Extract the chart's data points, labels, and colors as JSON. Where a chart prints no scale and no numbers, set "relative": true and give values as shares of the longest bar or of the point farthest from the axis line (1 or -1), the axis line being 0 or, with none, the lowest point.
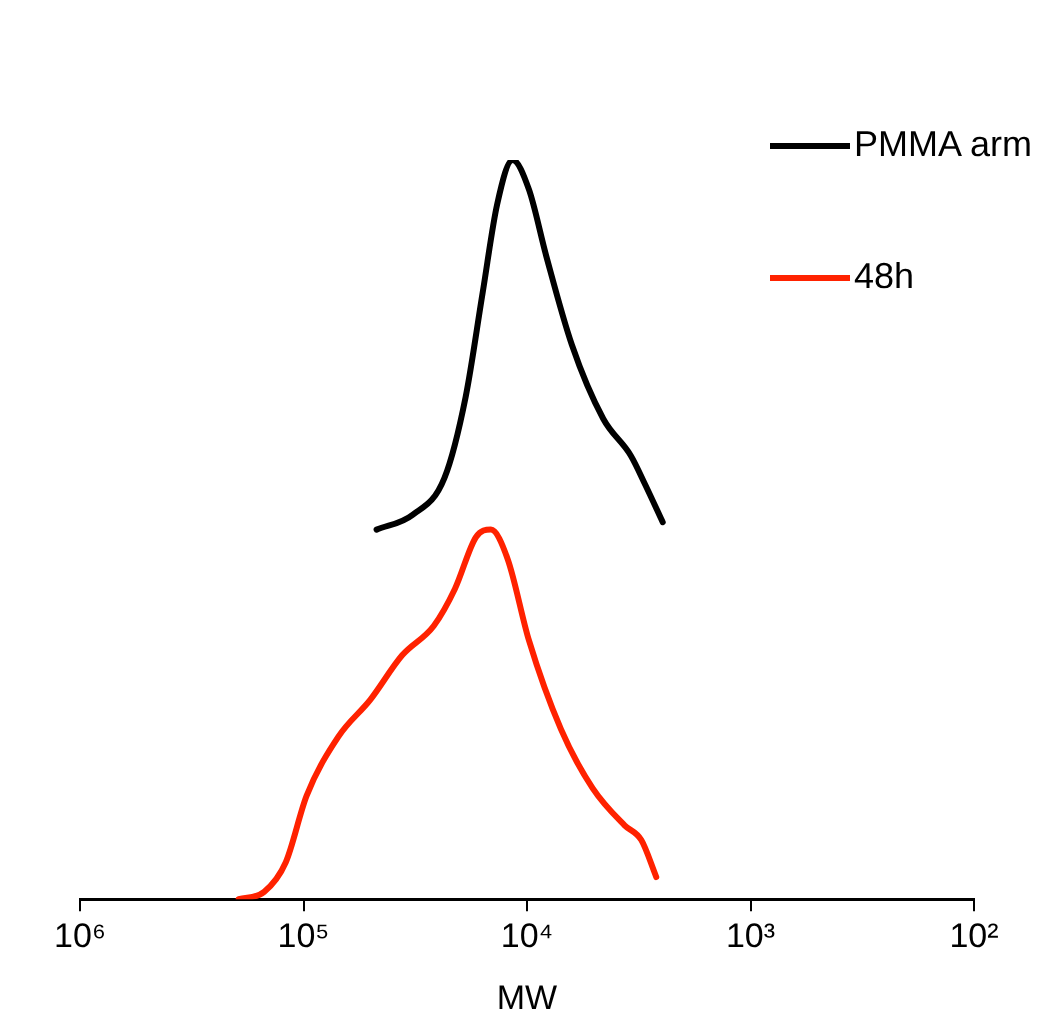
{
  "chart_data": {
    "type": "line",
    "relative": true,
    "xlabel": "MW",
    "log": "x",
    "xlim": [
      1000000,
      100
    ],
    "xticks": [
      {
        "value": 1000000,
        "label": "10⁶"
      },
      {
        "value": 100000,
        "label": "10⁵"
      },
      {
        "value": 10000,
        "label": "10⁴"
      },
      {
        "value": 1000,
        "label": "10³"
      },
      {
        "value": 100,
        "label": "10²"
      }
    ],
    "grid": false,
    "legend": "top right",
    "marker": "none",
    "line_style": "solid",
    "series": [
      {
        "name": "PMMA arm",
        "color": "#000000",
        "x": [
          47100,
          32500,
          23400,
          18800,
          15800,
          13600,
          11600,
          9800,
          8200,
          6300,
          4560,
          3430,
          2950,
          2470
        ],
        "values": [
          0.5,
          0.52,
          0.57,
          0.68,
          0.82,
          0.94,
          1,
          0.96,
          0.87,
          0.75,
          0.65,
          0.6,
          0.56,
          0.51
        ]
      },
      {
        "name": "48h",
        "color": "#ff2200",
        "x": [
          195000,
          150000,
          120000,
          96800,
          69800,
          50200,
          36200,
          26100,
          21000,
          16900,
          14500,
          12200,
          9800,
          7050,
          5080,
          3660,
          3080,
          2640
        ],
        "values": [
          0,
          0.01,
          0.05,
          0.14,
          0.22,
          0.27,
          0.33,
          0.37,
          0.42,
          0.49,
          0.5,
          0.46,
          0.35,
          0.23,
          0.15,
          0.1,
          0.08,
          0.03
        ]
      }
    ]
  }
}
